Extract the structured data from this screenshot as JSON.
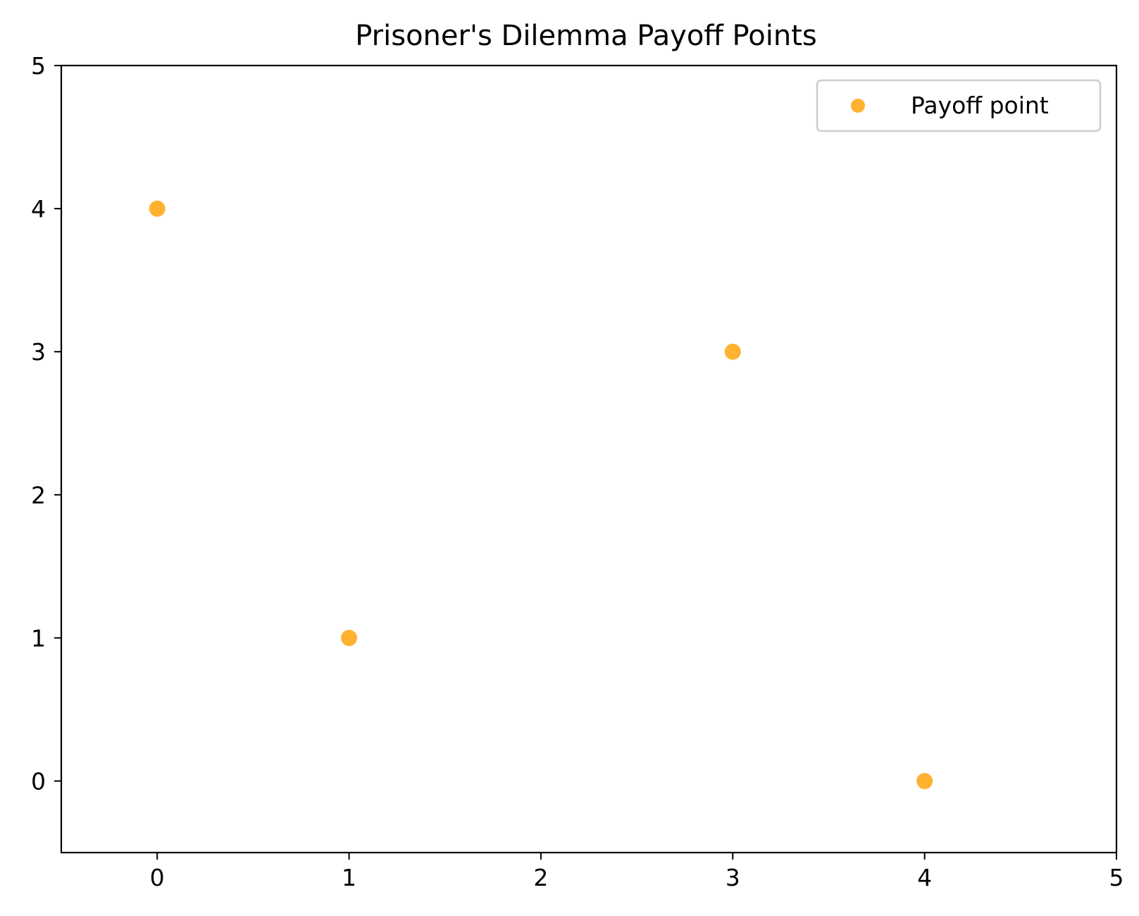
{
  "chart_data": {
    "type": "scatter",
    "title": "Prisoner's Dilemma Payoff Points",
    "xlabel": "",
    "ylabel": "",
    "xlim": [
      -0.5,
      5
    ],
    "ylim": [
      -0.5,
      5
    ],
    "xticks": [
      "0",
      "1",
      "2",
      "3",
      "4",
      "5"
    ],
    "yticks": [
      "0",
      "1",
      "2",
      "3",
      "4",
      "5"
    ],
    "grid": false,
    "legend_position": "top-right",
    "series": [
      {
        "name": "Payoff point",
        "color": "#ffb22f",
        "x": [
          0,
          1,
          3,
          4
        ],
        "y": [
          4,
          1,
          3,
          0
        ]
      }
    ]
  }
}
